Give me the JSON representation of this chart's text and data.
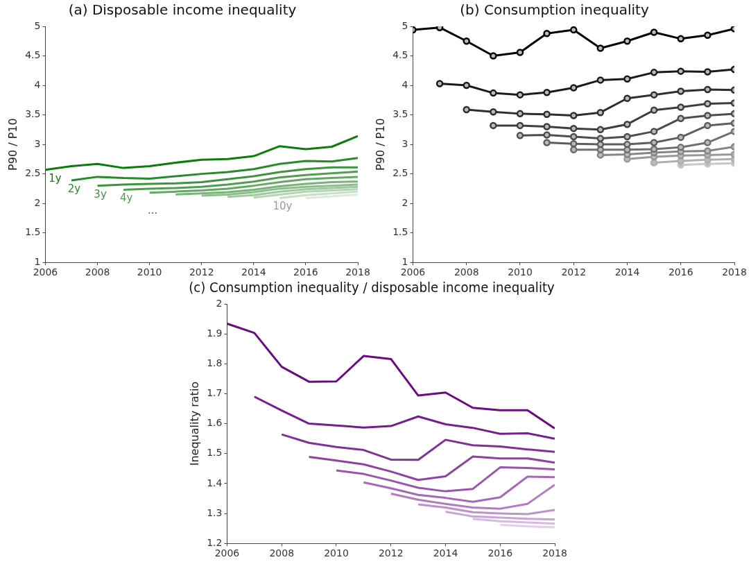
{
  "chart_data": [
    {
      "type": "line",
      "title": "(a) Disposable income inequality",
      "ylabel": "P90 / P10",
      "xlim": [
        2006,
        2018
      ],
      "xticks": [
        2006,
        2008,
        2010,
        2012,
        2014,
        2016,
        2018
      ],
      "ylim": [
        1,
        5
      ],
      "yticks": [
        1,
        1.5,
        2,
        2.5,
        3,
        3.5,
        4,
        4.5,
        5
      ],
      "grid": false,
      "legend": false,
      "marker": "none",
      "line_style": "solid",
      "annotations": [
        "..."
      ],
      "series": [
        {
          "name": "1y",
          "color": "#0a7d0a",
          "x": [
            2006,
            2007,
            2008,
            2009,
            2010,
            2011,
            2012,
            2013,
            2014,
            2015,
            2016,
            2017,
            2018
          ],
          "values": [
            2.57,
            2.63,
            2.67,
            2.6,
            2.63,
            2.69,
            2.74,
            2.75,
            2.8,
            2.97,
            2.92,
            2.96,
            3.14
          ]
        },
        {
          "name": "2y",
          "color": "#2a8a2a",
          "x": [
            2007,
            2008,
            2009,
            2010,
            2011,
            2012,
            2013,
            2014,
            2015,
            2016,
            2017,
            2018
          ],
          "values": [
            2.39,
            2.45,
            2.43,
            2.42,
            2.46,
            2.5,
            2.53,
            2.58,
            2.67,
            2.72,
            2.71,
            2.77
          ]
        },
        {
          "name": "3y",
          "color": "#3d943d",
          "x": [
            2008,
            2009,
            2010,
            2011,
            2012,
            2013,
            2014,
            2015,
            2016,
            2017,
            2018
          ],
          "values": [
            2.3,
            2.32,
            2.33,
            2.34,
            2.36,
            2.41,
            2.46,
            2.53,
            2.58,
            2.61,
            2.61
          ]
        },
        {
          "name": "4y",
          "color": "#509e50",
          "x": [
            2009,
            2010,
            2011,
            2012,
            2013,
            2014,
            2015,
            2016,
            2017,
            2018
          ],
          "values": [
            2.23,
            2.25,
            2.26,
            2.28,
            2.32,
            2.37,
            2.44,
            2.48,
            2.51,
            2.54
          ]
        },
        {
          "color": "#63a863",
          "x": [
            2010,
            2011,
            2012,
            2013,
            2014,
            2015,
            2016,
            2017,
            2018
          ],
          "values": [
            2.18,
            2.2,
            2.22,
            2.25,
            2.3,
            2.36,
            2.41,
            2.43,
            2.45
          ]
        },
        {
          "color": "#78b378",
          "x": [
            2011,
            2012,
            2013,
            2014,
            2015,
            2016,
            2017,
            2018
          ],
          "values": [
            2.15,
            2.17,
            2.19,
            2.23,
            2.29,
            2.33,
            2.36,
            2.37
          ]
        },
        {
          "color": "#8cbe8c",
          "x": [
            2012,
            2013,
            2014,
            2015,
            2016,
            2017,
            2018
          ],
          "values": [
            2.13,
            2.15,
            2.19,
            2.25,
            2.28,
            2.3,
            2.32
          ]
        },
        {
          "color": "#a0c9a0",
          "x": [
            2013,
            2014,
            2015,
            2016,
            2017,
            2018
          ],
          "values": [
            2.11,
            2.14,
            2.2,
            2.24,
            2.26,
            2.28
          ]
        },
        {
          "color": "#b4d4b4",
          "x": [
            2014,
            2015,
            2016,
            2017,
            2018
          ],
          "values": [
            2.1,
            2.15,
            2.2,
            2.22,
            2.24
          ]
        },
        {
          "name": "10y",
          "color": "#c8dfc8",
          "x": [
            2015,
            2016,
            2017,
            2018
          ],
          "values": [
            2.09,
            2.14,
            2.17,
            2.2
          ]
        },
        {
          "color": "#dceadc",
          "x": [
            2016,
            2017,
            2018
          ],
          "values": [
            2.09,
            2.12,
            2.15
          ]
        }
      ]
    },
    {
      "type": "line",
      "title": "(b) Consumption inequality",
      "ylabel": "P90 / P10",
      "xlim": [
        2006,
        2018
      ],
      "xticks": [
        2006,
        2008,
        2010,
        2012,
        2014,
        2016,
        2018
      ],
      "ylim": [
        1,
        5
      ],
      "yticks": [
        1,
        1.5,
        2,
        2.5,
        3,
        3.5,
        4,
        4.5,
        5
      ],
      "grid": false,
      "legend": false,
      "marker": "circle",
      "line_style": "solid",
      "series": [
        {
          "color": "#000000",
          "x": [
            2006,
            2007,
            2008,
            2009,
            2010,
            2011,
            2012,
            2013,
            2014,
            2015,
            2016,
            2017,
            2018
          ],
          "values": [
            4.94,
            4.98,
            4.75,
            4.5,
            4.56,
            4.88,
            4.94,
            4.63,
            4.75,
            4.9,
            4.79,
            4.85,
            4.96
          ]
        },
        {
          "color": "#1a1a1a",
          "x": [
            2007,
            2008,
            2009,
            2010,
            2011,
            2012,
            2013,
            2014,
            2015,
            2016,
            2017,
            2018
          ],
          "values": [
            4.03,
            4.0,
            3.87,
            3.84,
            3.88,
            3.96,
            4.09,
            4.11,
            4.22,
            4.24,
            4.23,
            4.27
          ]
        },
        {
          "color": "#2e2e2e",
          "x": [
            2008,
            2009,
            2010,
            2011,
            2012,
            2013,
            2014,
            2015,
            2016,
            2017,
            2018
          ],
          "values": [
            3.59,
            3.55,
            3.52,
            3.51,
            3.49,
            3.54,
            3.78,
            3.84,
            3.9,
            3.93,
            3.92
          ]
        },
        {
          "color": "#3d3d3d",
          "x": [
            2009,
            2010,
            2011,
            2012,
            2013,
            2014,
            2015,
            2016,
            2017,
            2018
          ],
          "values": [
            3.32,
            3.32,
            3.3,
            3.27,
            3.25,
            3.34,
            3.58,
            3.63,
            3.69,
            3.7
          ]
        },
        {
          "color": "#4d4d4d",
          "x": [
            2010,
            2011,
            2012,
            2013,
            2014,
            2015,
            2016,
            2017,
            2018
          ],
          "values": [
            3.15,
            3.16,
            3.13,
            3.1,
            3.13,
            3.22,
            3.44,
            3.49,
            3.52
          ]
        },
        {
          "color": "#5e5e5e",
          "x": [
            2011,
            2012,
            2013,
            2014,
            2015,
            2016,
            2017,
            2018
          ],
          "values": [
            3.03,
            3.01,
            3.0,
            3.0,
            3.03,
            3.12,
            3.32,
            3.36
          ]
        },
        {
          "color": "#707070",
          "x": [
            2012,
            2013,
            2014,
            2015,
            2016,
            2017,
            2018
          ],
          "values": [
            2.91,
            2.91,
            2.91,
            2.92,
            2.95,
            3.03,
            3.22
          ]
        },
        {
          "color": "#858585",
          "x": [
            2013,
            2014,
            2015,
            2016,
            2017,
            2018
          ],
          "values": [
            2.82,
            2.83,
            2.86,
            2.88,
            2.89,
            2.96
          ]
        },
        {
          "color": "#999999",
          "x": [
            2014,
            2015,
            2016,
            2017,
            2018
          ],
          "values": [
            2.75,
            2.79,
            2.81,
            2.82,
            2.83
          ]
        },
        {
          "color": "#b0b0b0",
          "x": [
            2015,
            2016,
            2017,
            2018
          ],
          "values": [
            2.69,
            2.72,
            2.74,
            2.75
          ]
        },
        {
          "color": "#c8c8c8",
          "x": [
            2016,
            2017,
            2018
          ],
          "values": [
            2.65,
            2.67,
            2.68
          ]
        }
      ]
    },
    {
      "type": "line",
      "title": "(c) Consumption inequality / disposable income inequality",
      "ylabel": "Inequality ratio",
      "xlim": [
        2006,
        2018
      ],
      "xticks": [
        2006,
        2008,
        2010,
        2012,
        2014,
        2016,
        2018
      ],
      "ylim": [
        1.2,
        2
      ],
      "yticks": [
        1.2,
        1.3,
        1.4,
        1.5,
        1.6,
        1.7,
        1.8,
        1.9,
        2
      ],
      "grid": false,
      "legend": false,
      "marker": "none",
      "line_style": "solid",
      "series": [
        {
          "color": "#6a0a85",
          "x": [
            2006,
            2007,
            2008,
            2009,
            2010,
            2011,
            2012,
            2013,
            2014,
            2015,
            2016,
            2017,
            2018
          ],
          "values": [
            1.934,
            1.903,
            1.79,
            1.74,
            1.741,
            1.826,
            1.816,
            1.694,
            1.704,
            1.653,
            1.645,
            1.645,
            1.584
          ]
        },
        {
          "color": "#761d8f",
          "x": [
            2007,
            2008,
            2009,
            2010,
            2011,
            2012,
            2013,
            2014,
            2015,
            2016,
            2017,
            2018
          ],
          "values": [
            1.69,
            1.644,
            1.6,
            1.594,
            1.587,
            1.592,
            1.624,
            1.598,
            1.586,
            1.566,
            1.568,
            1.55
          ]
        },
        {
          "color": "#822f99",
          "x": [
            2008,
            2009,
            2010,
            2011,
            2012,
            2013,
            2014,
            2015,
            2016,
            2017,
            2018
          ],
          "values": [
            1.564,
            1.536,
            1.522,
            1.512,
            1.48,
            1.479,
            1.546,
            1.528,
            1.524,
            1.514,
            1.506
          ]
        },
        {
          "color": "#8e42a3",
          "x": [
            2009,
            2010,
            2011,
            2012,
            2013,
            2014,
            2015,
            2016,
            2017,
            2018
          ],
          "values": [
            1.489,
            1.477,
            1.464,
            1.44,
            1.412,
            1.424,
            1.49,
            1.484,
            1.484,
            1.47
          ]
        },
        {
          "color": "#9a55ad",
          "x": [
            2010,
            2011,
            2012,
            2013,
            2014,
            2015,
            2016,
            2017,
            2018
          ],
          "values": [
            1.444,
            1.432,
            1.41,
            1.386,
            1.374,
            1.382,
            1.454,
            1.452,
            1.447
          ]
        },
        {
          "color": "#a768b8",
          "x": [
            2011,
            2012,
            2013,
            2014,
            2015,
            2016,
            2017,
            2018
          ],
          "values": [
            1.404,
            1.384,
            1.362,
            1.352,
            1.339,
            1.354,
            1.423,
            1.421
          ]
        },
        {
          "color": "#b37bc2",
          "x": [
            2012,
            2013,
            2014,
            2015,
            2016,
            2017,
            2018
          ],
          "values": [
            1.366,
            1.346,
            1.332,
            1.32,
            1.316,
            1.332,
            1.396
          ]
        },
        {
          "color": "#c08fcd",
          "x": [
            2013,
            2014,
            2015,
            2016,
            2017,
            2018
          ],
          "values": [
            1.33,
            1.32,
            1.304,
            1.3,
            1.298,
            1.312
          ]
        },
        {
          "color": "#cca3d8",
          "x": [
            2014,
            2015,
            2016,
            2017,
            2018
          ],
          "values": [
            1.306,
            1.29,
            1.286,
            1.282,
            1.28
          ]
        },
        {
          "color": "#d8b8e2",
          "x": [
            2015,
            2016,
            2017,
            2018
          ],
          "values": [
            1.282,
            1.274,
            1.27,
            1.266
          ]
        },
        {
          "color": "#e4cdec",
          "x": [
            2016,
            2017,
            2018
          ],
          "values": [
            1.262,
            1.257,
            1.254
          ]
        }
      ]
    }
  ]
}
